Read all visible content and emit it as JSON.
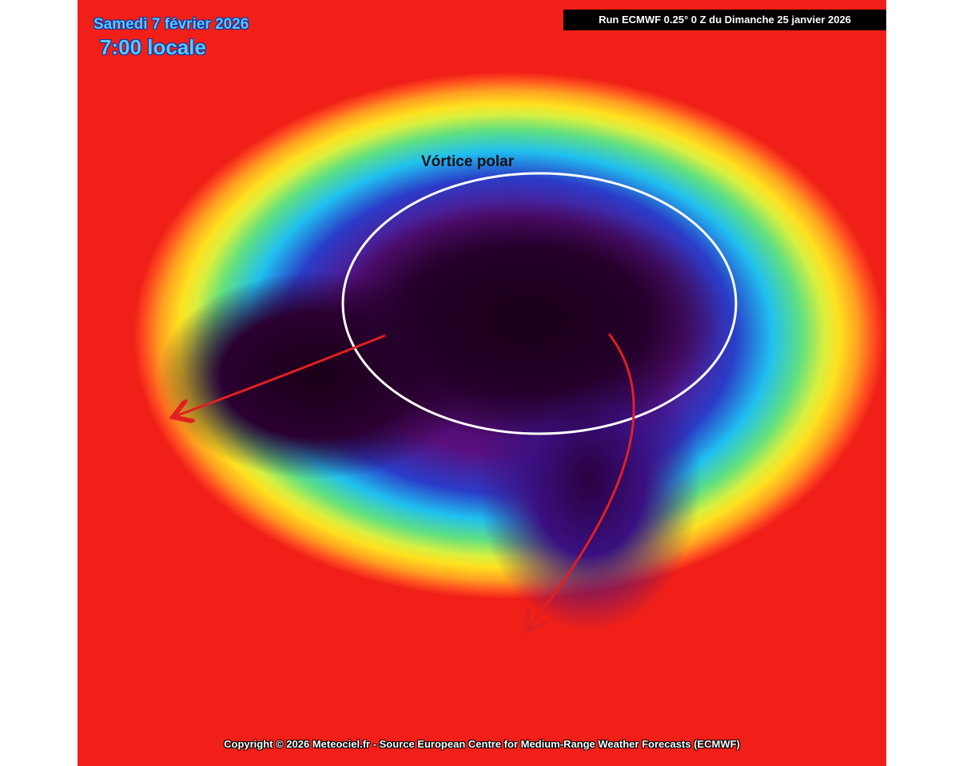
{
  "header": {
    "date": "Samedi 7 février 2026",
    "time": "7:00 locale",
    "run": "Run ECMWF 0.25° 0 Z du Dimanche 25 janvier 2026"
  },
  "annotation": {
    "label": "Vórtice polar",
    "ellipse_color": "#ffffff",
    "arrow_color": "#e02020"
  },
  "footer": {
    "copyright": "Copyright © 2026 Meteociel.fr - Source European Centre for Medium-Range Weather Forecasts (ECMWF)"
  },
  "colors": {
    "core": "#24002a",
    "purple": "#7a1a9a",
    "blue": "#2a3cc8",
    "cyan": "#20c0f0",
    "green": "#60e080",
    "yellow": "#ffe020",
    "orange": "#ffa020",
    "red": "#f02018"
  }
}
